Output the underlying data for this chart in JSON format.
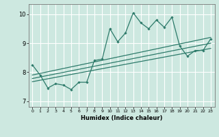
{
  "title": "",
  "xlabel": "Humidex (Indice chaleur)",
  "xlim": [
    -0.5,
    23.5
  ],
  "ylim": [
    6.8,
    10.35
  ],
  "xticks": [
    0,
    1,
    2,
    3,
    4,
    5,
    6,
    7,
    8,
    9,
    10,
    11,
    12,
    13,
    14,
    15,
    16,
    17,
    18,
    19,
    20,
    21,
    22,
    23
  ],
  "yticks": [
    7,
    8,
    9,
    10
  ],
  "bg_color": "#cde8e0",
  "line_color": "#2d7a6a",
  "grid_color": "#ffffff",
  "main_x": [
    0,
    1,
    2,
    3,
    4,
    5,
    6,
    7,
    8,
    9,
    10,
    11,
    12,
    13,
    14,
    15,
    16,
    17,
    18,
    19,
    20,
    21,
    22,
    23
  ],
  "main_y": [
    8.25,
    7.9,
    7.45,
    7.6,
    7.55,
    7.4,
    7.65,
    7.65,
    8.4,
    8.45,
    9.5,
    9.05,
    9.35,
    10.05,
    9.7,
    9.5,
    9.8,
    9.55,
    9.9,
    8.9,
    8.55,
    8.75,
    8.75,
    9.15
  ],
  "reg_lines": [
    {
      "x": [
        0,
        23
      ],
      "y": [
        7.9,
        9.2
      ]
    },
    {
      "x": [
        0,
        23
      ],
      "y": [
        7.78,
        9.0
      ]
    },
    {
      "x": [
        0,
        23
      ],
      "y": [
        7.67,
        8.82
      ]
    }
  ]
}
